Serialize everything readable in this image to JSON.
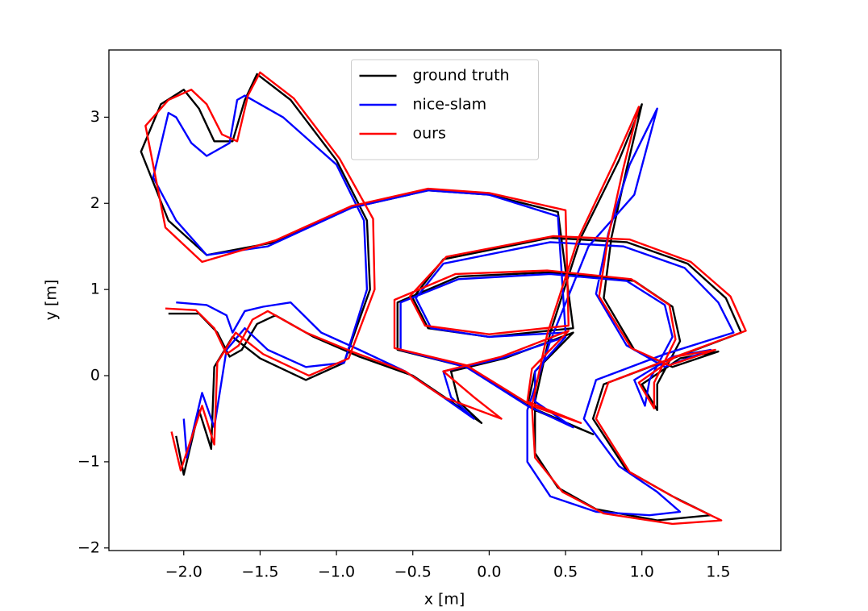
{
  "chart_data": {
    "type": "line",
    "xlabel": "x [m]",
    "ylabel": "y [m]",
    "xlim": [
      -2.49,
      1.91
    ],
    "ylim": [
      -2.03,
      3.78
    ],
    "xticks": [
      {
        "value": -2.0,
        "label": "−2.0"
      },
      {
        "value": -1.5,
        "label": "−1.5"
      },
      {
        "value": -1.0,
        "label": "−1.0"
      },
      {
        "value": -0.5,
        "label": "−0.5"
      },
      {
        "value": 0.0,
        "label": "0.0"
      },
      {
        "value": 0.5,
        "label": "0.5"
      },
      {
        "value": 1.0,
        "label": "1.0"
      },
      {
        "value": 1.5,
        "label": "1.5"
      }
    ],
    "yticks": [
      {
        "value": -2,
        "label": "−2"
      },
      {
        "value": -1,
        "label": "−1"
      },
      0,
      1,
      2,
      3
    ],
    "legend": "upper center",
    "series": [
      {
        "name": "ground truth",
        "color": "#000000",
        "x": [
          -2.1,
          -1.9,
          -1.78,
          -1.7,
          -1.62,
          -1.52,
          -1.4,
          -1.15,
          -0.85,
          -0.5,
          -0.25,
          -0.05,
          -0.2,
          -0.25,
          0.1,
          0.55,
          0.3,
          0.25,
          0.68,
          0.3,
          -0.15,
          -0.6,
          -0.6,
          -0.2,
          0.4,
          0.95,
          1.2,
          1.25,
          1.1,
          1.1,
          1.0,
          1.25,
          1.5,
          1.2,
          0.95,
          0.75,
          0.8,
          0.9,
          1.0,
          0.85,
          0.6,
          0.4,
          0.3,
          0.3,
          0.45,
          0.7,
          1.1,
          1.45,
          1.2,
          0.9,
          0.68,
          0.75,
          1.2,
          1.65,
          1.55,
          1.3,
          0.9,
          0.4,
          -0.3,
          -0.5,
          -0.4,
          0.0,
          0.55,
          0.45,
          0.0,
          -0.4,
          -0.9,
          -1.4,
          -1.85,
          -2.1,
          -2.28,
          -2.15,
          -2.0,
          -1.9,
          -1.8,
          -1.68,
          -1.6,
          -1.52,
          -1.3,
          -1.0,
          -0.8,
          -0.78,
          -0.95,
          -1.2,
          -1.5,
          -1.68,
          -1.8,
          -1.82,
          -1.9,
          -2.0,
          -2.05
        ],
        "values": [
          0.72,
          0.72,
          0.5,
          0.22,
          0.3,
          0.6,
          0.7,
          0.45,
          0.22,
          0.0,
          -0.3,
          -0.55,
          -0.3,
          0.05,
          0.2,
          0.5,
          0.05,
          -0.35,
          -0.68,
          -0.4,
          0.1,
          0.3,
          0.85,
          1.15,
          1.2,
          1.1,
          0.8,
          0.4,
          -0.1,
          -0.4,
          -0.1,
          0.2,
          0.28,
          0.1,
          0.3,
          0.9,
          1.6,
          2.4,
          3.15,
          2.5,
          1.6,
          0.5,
          -0.3,
          -0.9,
          -1.3,
          -1.55,
          -1.68,
          -1.62,
          -1.4,
          -1.1,
          -0.5,
          -0.1,
          0.2,
          0.5,
          0.9,
          1.3,
          1.55,
          1.6,
          1.35,
          0.9,
          0.55,
          0.45,
          0.55,
          1.9,
          2.1,
          2.15,
          1.95,
          1.55,
          1.4,
          1.8,
          2.6,
          3.15,
          3.32,
          3.1,
          2.72,
          2.72,
          3.2,
          3.5,
          3.2,
          2.5,
          1.8,
          1.0,
          0.15,
          -0.05,
          0.2,
          0.45,
          0.1,
          -0.85,
          -0.4,
          -1.15,
          -0.7
        ]
      },
      {
        "name": "nice-slam",
        "color": "#0000ff",
        "x": [
          -2.05,
          -1.85,
          -1.72,
          -1.68,
          -1.6,
          -1.48,
          -1.3,
          -1.1,
          -0.85,
          -0.55,
          -0.3,
          -0.1,
          -0.25,
          -0.3,
          0.08,
          0.5,
          0.3,
          0.3,
          0.55,
          0.25,
          -0.15,
          -0.58,
          -0.58,
          -0.2,
          0.4,
          0.9,
          1.15,
          1.2,
          1.05,
          1.02,
          0.95,
          1.2,
          1.45,
          1.15,
          0.9,
          0.7,
          0.78,
          0.92,
          1.1,
          0.95,
          0.65,
          0.4,
          0.25,
          0.25,
          0.4,
          0.7,
          1.05,
          1.25,
          1.1,
          0.85,
          0.62,
          0.7,
          1.15,
          1.6,
          1.5,
          1.28,
          0.88,
          0.4,
          -0.3,
          -0.48,
          -0.38,
          0.0,
          0.5,
          0.45,
          0.0,
          -0.4,
          -0.9,
          -1.45,
          -1.85,
          -2.05,
          -2.2,
          -2.1,
          -2.05,
          -1.95,
          -1.85,
          -1.7,
          -1.65,
          -1.6,
          -1.35,
          -1.0,
          -0.82,
          -0.8,
          -0.95,
          -1.2,
          -1.45,
          -1.6,
          -1.72,
          -1.8,
          -1.88,
          -1.98,
          -2.0
        ],
        "values": [
          0.85,
          0.82,
          0.7,
          0.5,
          0.75,
          0.8,
          0.85,
          0.5,
          0.3,
          0.05,
          -0.25,
          -0.5,
          -0.25,
          0.05,
          0.2,
          0.45,
          0.05,
          -0.3,
          -0.6,
          -0.35,
          0.1,
          0.3,
          0.85,
          1.12,
          1.18,
          1.1,
          0.82,
          0.45,
          -0.05,
          -0.35,
          -0.05,
          0.22,
          0.3,
          0.1,
          0.35,
          0.95,
          1.65,
          2.45,
          3.1,
          2.1,
          1.5,
          0.4,
          -0.4,
          -1.0,
          -1.4,
          -1.58,
          -1.62,
          -1.58,
          -1.35,
          -1.05,
          -0.5,
          -0.05,
          0.25,
          0.5,
          0.85,
          1.25,
          1.5,
          1.55,
          1.3,
          0.9,
          0.55,
          0.45,
          0.5,
          1.85,
          2.1,
          2.15,
          1.95,
          1.5,
          1.4,
          1.8,
          2.3,
          3.05,
          3.0,
          2.7,
          2.55,
          2.7,
          3.2,
          3.25,
          3.0,
          2.45,
          1.8,
          1.0,
          0.15,
          0.1,
          0.3,
          0.55,
          0.3,
          -0.6,
          -0.2,
          -0.95,
          -0.5
        ]
      },
      {
        "name": "ours",
        "color": "#ff0000",
        "x": [
          -2.12,
          -1.92,
          -1.8,
          -1.72,
          -1.64,
          -1.55,
          -1.45,
          -1.2,
          -0.9,
          -0.55,
          -0.3,
          0.08,
          -0.1,
          -0.3,
          0.08,
          0.52,
          0.28,
          0.25,
          0.6,
          0.28,
          -0.15,
          -0.62,
          -0.62,
          -0.22,
          0.38,
          0.93,
          1.18,
          1.22,
          1.08,
          1.08,
          0.98,
          1.22,
          1.48,
          1.18,
          0.93,
          0.72,
          0.78,
          0.88,
          0.98,
          0.82,
          0.58,
          0.38,
          0.28,
          0.3,
          0.48,
          0.75,
          1.2,
          1.52,
          1.25,
          0.92,
          0.7,
          0.78,
          1.22,
          1.68,
          1.58,
          1.32,
          0.92,
          0.42,
          -0.28,
          -0.52,
          -0.42,
          0.0,
          0.52,
          0.5,
          0.0,
          -0.4,
          -0.9,
          -1.4,
          -1.88,
          -2.12,
          -2.25,
          -2.1,
          -1.95,
          -1.85,
          -1.75,
          -1.65,
          -1.58,
          -1.5,
          -1.28,
          -0.98,
          -0.76,
          -0.75,
          -0.92,
          -1.18,
          -1.48,
          -1.66,
          -1.78,
          -1.8,
          -1.88,
          -2.02,
          -2.08
        ],
        "values": [
          0.78,
          0.76,
          0.55,
          0.25,
          0.35,
          0.65,
          0.75,
          0.5,
          0.28,
          0.05,
          -0.25,
          -0.5,
          -0.25,
          0.05,
          0.22,
          0.52,
          0.08,
          -0.3,
          -0.55,
          -0.35,
          0.12,
          0.32,
          0.88,
          1.18,
          1.22,
          1.12,
          0.82,
          0.42,
          -0.08,
          -0.38,
          -0.08,
          0.22,
          0.3,
          0.12,
          0.32,
          0.92,
          1.62,
          2.42,
          3.12,
          2.48,
          1.58,
          0.48,
          -0.35,
          -0.95,
          -1.35,
          -1.6,
          -1.72,
          -1.68,
          -1.45,
          -1.12,
          -0.5,
          -0.08,
          0.22,
          0.52,
          0.92,
          1.32,
          1.58,
          1.62,
          1.38,
          0.92,
          0.58,
          0.48,
          0.58,
          1.92,
          2.12,
          2.17,
          1.97,
          1.57,
          1.32,
          1.72,
          2.9,
          3.2,
          3.32,
          3.15,
          2.8,
          2.72,
          3.25,
          3.52,
          3.22,
          2.52,
          1.82,
          1.0,
          0.2,
          0.0,
          0.25,
          0.5,
          0.15,
          -0.8,
          -0.35,
          -1.1,
          -0.65
        ]
      }
    ]
  }
}
